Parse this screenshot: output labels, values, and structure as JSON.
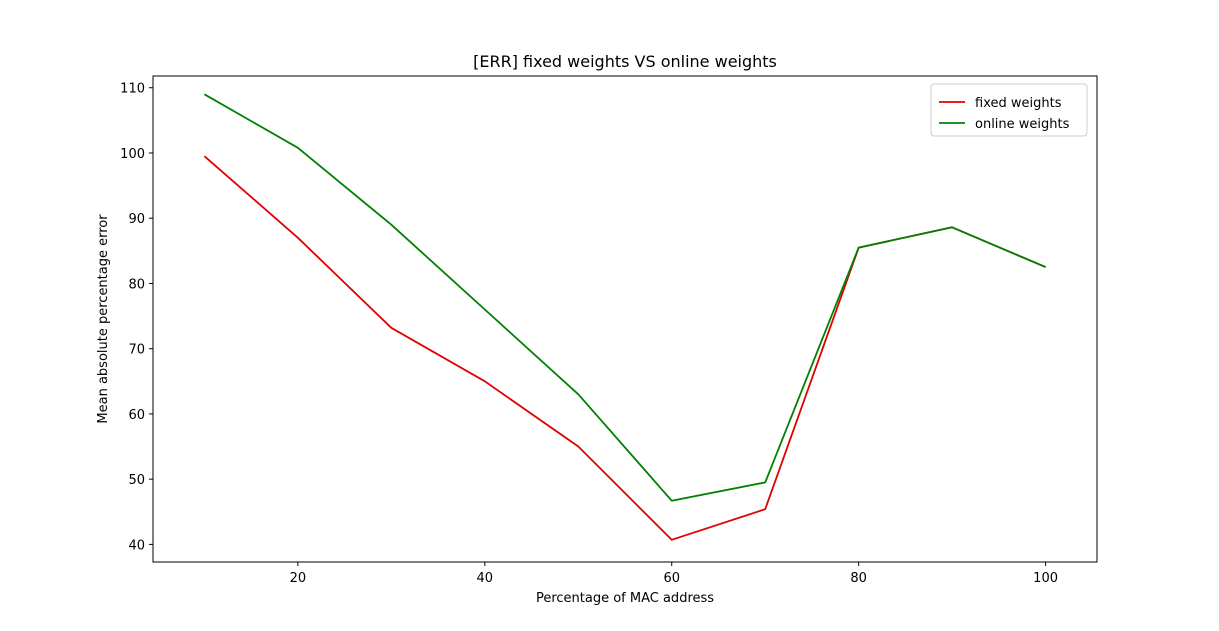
{
  "chart_data": {
    "type": "line",
    "title": "[ERR] fixed weights VS online weights",
    "xlabel": "Percentage of MAC address",
    "ylabel": "Mean absolute percentage error",
    "x": [
      10,
      20,
      30,
      40,
      50,
      60,
      70,
      80,
      90,
      100
    ],
    "xlim": [
      4.5,
      105.5
    ],
    "ylim": [
      37.3,
      111.8
    ],
    "xticks": [
      20,
      40,
      60,
      80,
      100
    ],
    "yticks": [
      40,
      50,
      60,
      70,
      80,
      90,
      100,
      110
    ],
    "grid": false,
    "legend_position": "top-right",
    "series": [
      {
        "name": "fixed weights",
        "color": "#e00000",
        "values": [
          99.5,
          87.0,
          73.2,
          65.0,
          55.0,
          40.7,
          45.4,
          85.5,
          88.6,
          82.5
        ]
      },
      {
        "name": "online weights",
        "color": "#008000",
        "values": [
          109.0,
          100.8,
          89.0,
          76.0,
          63.0,
          46.7,
          49.5,
          85.5,
          88.6,
          82.5
        ]
      }
    ]
  }
}
